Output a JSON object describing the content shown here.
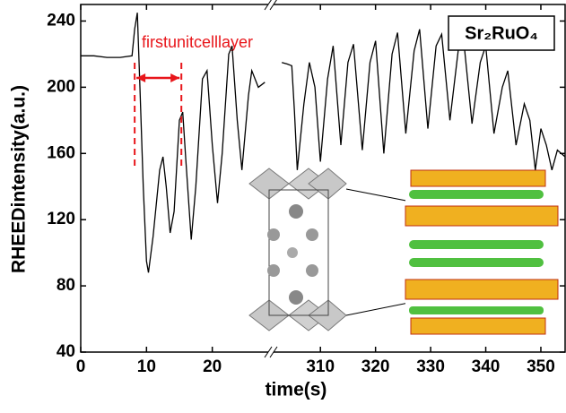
{
  "chart_data": {
    "type": "line",
    "x_label": "time(s)",
    "y_label": "RHEEDintensity(a.u.)",
    "label_box": "Sr₂RuO₄",
    "annotation": {
      "text": "firstunitcelllayer",
      "x": [
        8.2,
        15.3
      ],
      "color": "#e8161b"
    },
    "ylim": [
      40,
      250
    ],
    "yticks": [
      40,
      80,
      120,
      160,
      200,
      240
    ],
    "x_segments": [
      {
        "xlim": [
          0,
          28.5
        ],
        "xticks": [
          0,
          10,
          20
        ]
      },
      {
        "xlim": [
          301.5,
          354.4
        ],
        "xticks": [
          310,
          320,
          330,
          340,
          350
        ]
      }
    ],
    "series": [
      {
        "name": "RHEED",
        "color": "#000000",
        "x": [
          0,
          2,
          4,
          6,
          7.8,
          8.2,
          8.6,
          9,
          9.5,
          10,
          10.3,
          11,
          12,
          12.5,
          13,
          13.6,
          14.2,
          15,
          15.5,
          16,
          16.8,
          17.5,
          18.5,
          19.2,
          20,
          20.8,
          21.5,
          22.5,
          23,
          23.8,
          24.5,
          25.5,
          26,
          27,
          28,
          null,
          303,
          304,
          304.8,
          305.3,
          305.8,
          307,
          308,
          309,
          310,
          311.3,
          312.3,
          313.7,
          315,
          316,
          317.6,
          319,
          320,
          321.5,
          323,
          324,
          325.5,
          327,
          328,
          329.5,
          331,
          332,
          333.5,
          335,
          336,
          337.5,
          339,
          340,
          341.5,
          343,
          344,
          345.5,
          347,
          348,
          349,
          350,
          351,
          352,
          353,
          354.4
        ],
        "values": [
          219,
          219,
          218,
          218,
          219,
          235,
          245,
          200,
          140,
          95,
          88,
          110,
          150,
          158,
          140,
          112,
          125,
          180,
          185,
          155,
          108,
          140,
          205,
          210,
          165,
          130,
          160,
          220,
          225,
          180,
          150,
          195,
          210,
          200,
          203,
          null,
          215,
          214,
          213,
          185,
          150,
          190,
          215,
          200,
          155,
          205,
          225,
          165,
          215,
          226,
          162,
          215,
          228,
          160,
          220,
          233,
          172,
          222,
          235,
          175,
          225,
          232,
          180,
          222,
          228,
          178,
          215,
          225,
          172,
          200,
          210,
          165,
          190,
          180,
          150,
          175,
          165,
          150,
          162,
          158
        ]
      }
    ]
  }
}
